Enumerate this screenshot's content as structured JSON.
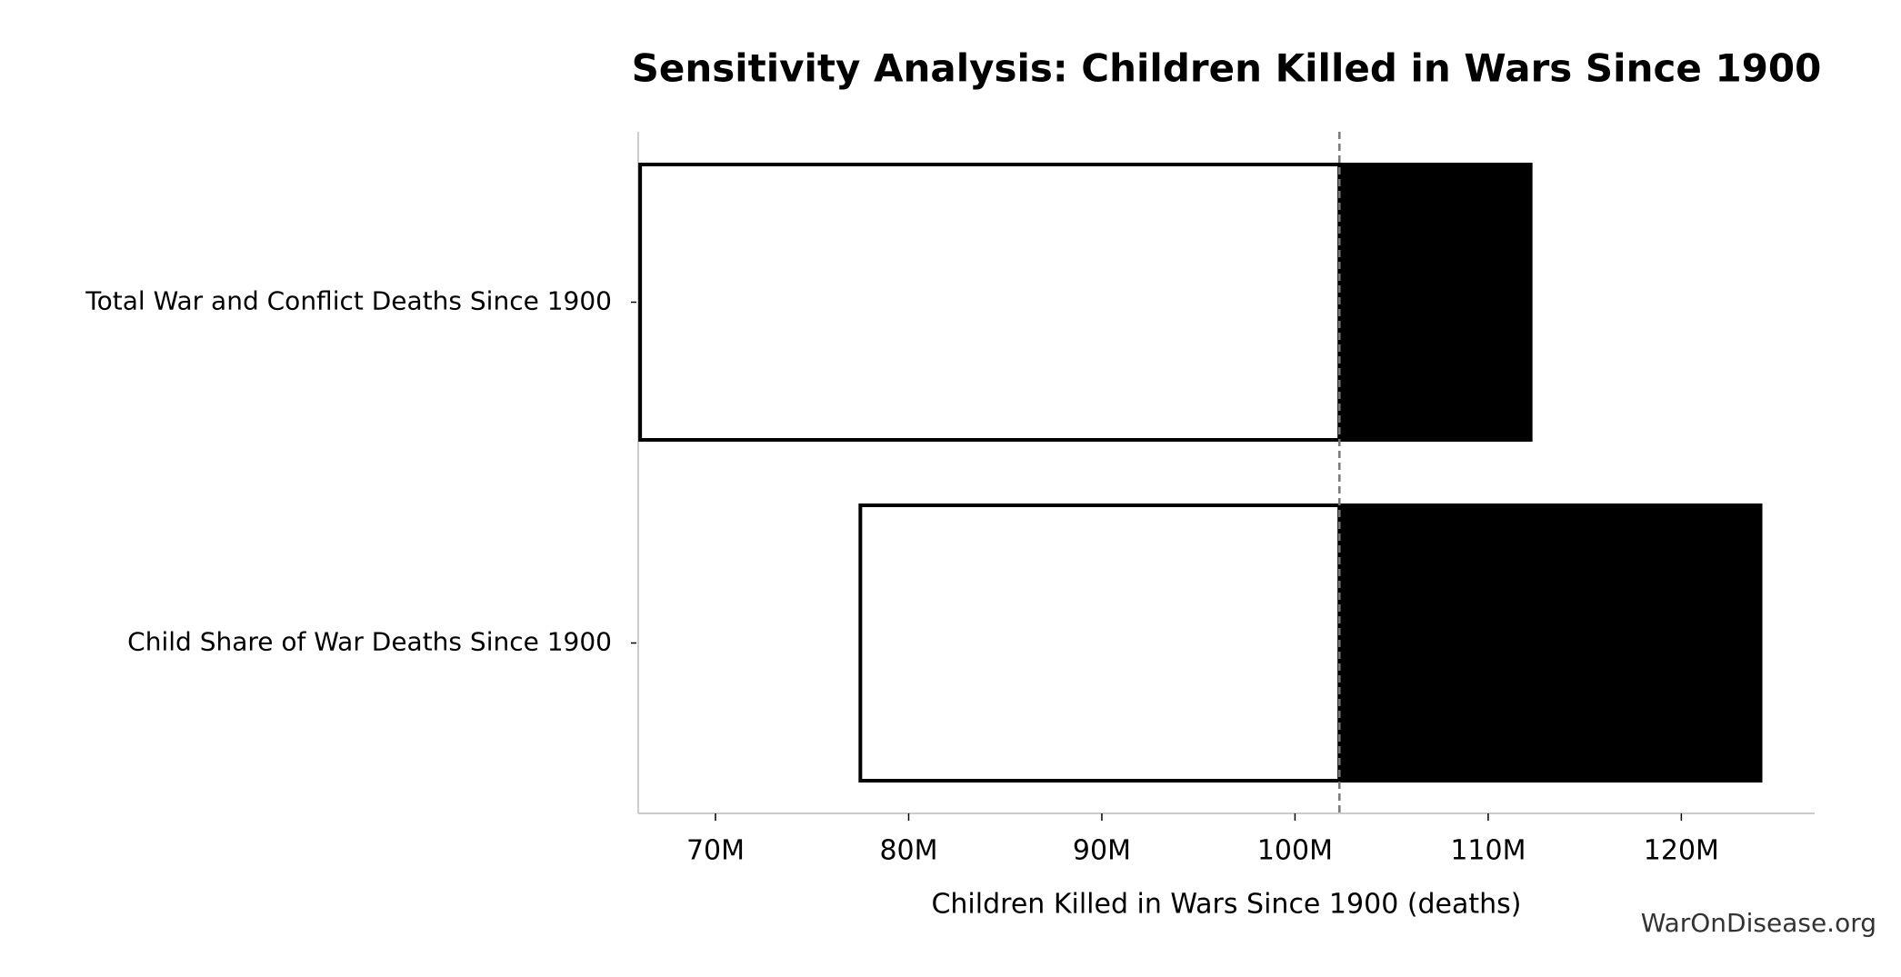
{
  "chart_data": {
    "type": "tornado",
    "title": "Sensitivity Analysis: Children Killed in Wars Since 1900",
    "xlabel": "Children Killed in Wars Since 1900 (deaths)",
    "source": "WarOnDisease.org",
    "categories": [
      "Total War and Conflict Deaths Since 1900",
      "Child Share of War Deaths Since 1900"
    ],
    "low": [
      66100000,
      77500000
    ],
    "high": [
      112200000,
      124100000
    ],
    "baseline": 102300000,
    "low_color": "#ffffff",
    "high_color": "#000000",
    "xlim": [
      66000000,
      126900000
    ],
    "xticks": [
      {
        "value": 70000000,
        "label": "70M"
      },
      {
        "value": 80000000,
        "label": "80M"
      },
      {
        "value": 90000000,
        "label": "90M"
      },
      {
        "value": 100000000,
        "label": "100M"
      },
      {
        "value": 110000000,
        "label": "110M"
      },
      {
        "value": 120000000,
        "label": "120M"
      }
    ]
  }
}
